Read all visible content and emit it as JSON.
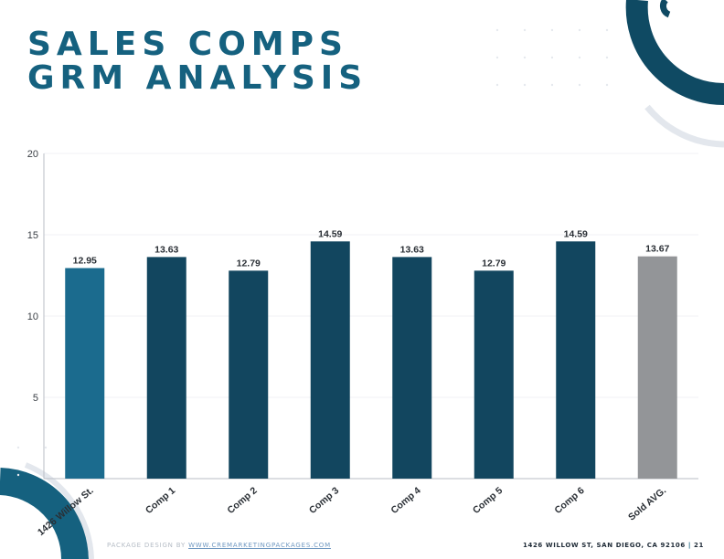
{
  "title": {
    "line1": "SALES COMPS",
    "line2": "GRM ANALYSIS"
  },
  "footer": {
    "left_prefix": "PACKAGE DESIGN BY",
    "left_link": "WWW.CREMARKETINGPACKAGES.COM",
    "right_address": "1426 WILLOW ST, SAN DIEGO, CA 92106",
    "right_separator": "|",
    "page_number": "21"
  },
  "colors": {
    "title": "#15617f",
    "subject_bar": "#1b6b8e",
    "comp_bar": "#12465f",
    "average_bar": "#939598",
    "decor_dark": "#0f4a63",
    "decor_light": "#e3e7ed"
  },
  "chart_data": {
    "type": "bar",
    "categories": [
      "1426 Willow St.",
      "Comp 1",
      "Comp 2",
      "Comp 3",
      "Comp 4",
      "Comp 5",
      "Comp 6",
      "Sold AVG."
    ],
    "values": [
      12.95,
      13.63,
      12.79,
      14.59,
      13.63,
      12.79,
      14.59,
      13.67
    ],
    "data_labels": [
      "12.95",
      "13.63",
      "12.79",
      "14.59",
      "13.63",
      "12.79",
      "14.59",
      "13.67"
    ],
    "bar_colors": [
      "#1b6b8e",
      "#12465f",
      "#12465f",
      "#12465f",
      "#12465f",
      "#12465f",
      "#12465f",
      "#939598"
    ],
    "yticks": [
      "5",
      "10",
      "15",
      "20"
    ],
    "ylim": [
      0,
      20
    ],
    "title": "",
    "xlabel": "",
    "ylabel": "",
    "grid": true,
    "legend": "none"
  }
}
